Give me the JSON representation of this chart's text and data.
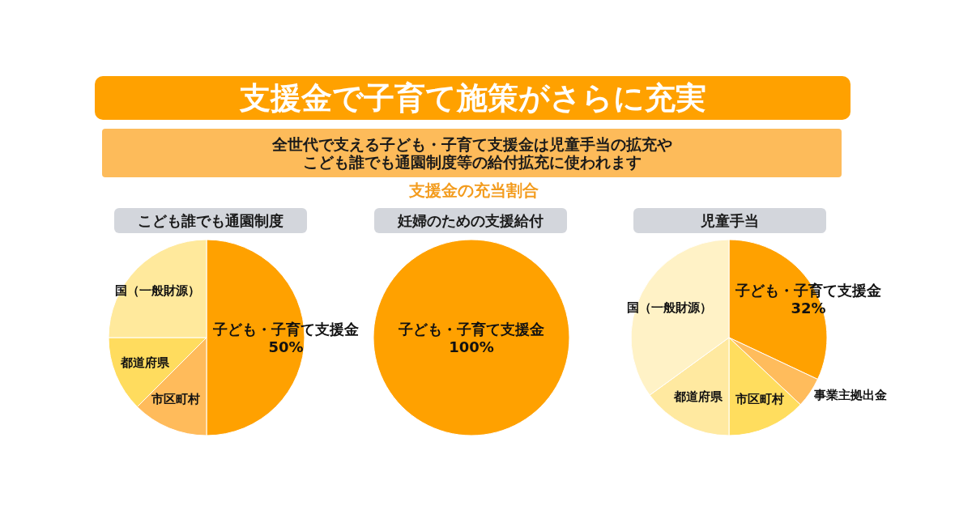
{
  "chart_data": [
    {
      "type": "other",
      "title": "支援金で子育て施策がさらに充実",
      "subtitle": "全世代で支える子ども・子育て支援金は児童手当の拡充やこども誰でも通園制度等の給付拡充に使われます",
      "annotations": [
        "支援金の充当割合"
      ]
    },
    {
      "type": "pie",
      "title": "こども誰でも通園制度",
      "categories": [
        "子ども・子育て支援金",
        "市区町村",
        "都道府県",
        "国（一般財源）"
      ],
      "values": [
        50,
        12.5,
        12.5,
        25
      ],
      "colors": [
        "#ffa100",
        "#ffbb5b",
        "#ffdc5e",
        "#ffe99c"
      ],
      "value_labels": [
        "50%",
        null,
        null,
        null
      ]
    },
    {
      "type": "pie",
      "title": "妊婦のための支援給付",
      "categories": [
        "子ども・子育て支援金"
      ],
      "values": [
        100
      ],
      "colors": [
        "#ffa100"
      ],
      "value_labels": [
        "100%"
      ]
    },
    {
      "type": "pie",
      "title": "児童手当",
      "categories": [
        "子ども・子育て支援金",
        "事業主拠出金",
        "市区町村",
        "都道府県",
        "国（一般財源）"
      ],
      "values": [
        32,
        5,
        13,
        15,
        35
      ],
      "colors": [
        "#ffa100",
        "#ffbc5c",
        "#ffdd5e",
        "#ffe9a0",
        "#fff2c6"
      ],
      "value_labels": [
        "32%",
        null,
        null,
        null,
        null
      ]
    }
  ]
}
